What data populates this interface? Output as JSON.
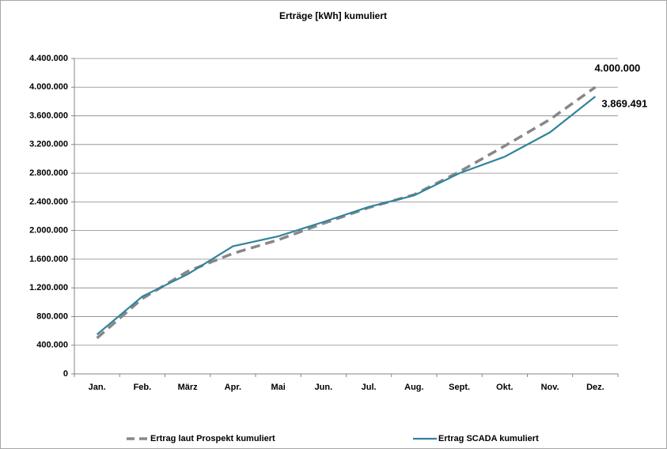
{
  "chart_data": {
    "type": "line",
    "title": "Erträge [kWh] kumuliert",
    "categories": [
      "Jan.",
      "Feb.",
      "März",
      "Apr.",
      "Mai",
      "Jun.",
      "Jul.",
      "Aug.",
      "Sept.",
      "Okt.",
      "Nov.",
      "Dez."
    ],
    "series": [
      {
        "name": "Ertrag laut Prospekt kumuliert",
        "color": "#878787",
        "dashed": true,
        "values": [
          500000,
          1050000,
          1430000,
          1680000,
          1870000,
          2100000,
          2320000,
          2500000,
          2820000,
          3180000,
          3550000,
          4000000
        ],
        "value_labels": [
          null,
          null,
          null,
          null,
          null,
          null,
          null,
          null,
          null,
          null,
          null,
          "4.000.000"
        ]
      },
      {
        "name": "Ertrag SCADA kumuliert",
        "color": "#31849b",
        "dashed": false,
        "values": [
          550000,
          1080000,
          1390000,
          1780000,
          1920000,
          2120000,
          2330000,
          2490000,
          2800000,
          3030000,
          3370000,
          3869491
        ],
        "value_labels": [
          null,
          null,
          null,
          null,
          null,
          null,
          null,
          null,
          null,
          null,
          null,
          "3.869.491"
        ]
      }
    ],
    "ylim": [
      0,
      4400000
    ],
    "yticks": [
      0,
      {
        "value": 400000,
        "label": "400.000"
      },
      {
        "value": 800000,
        "label": "800.000"
      },
      {
        "value": 1200000,
        "label": "1.200.000"
      },
      {
        "value": 1600000,
        "label": "1.600.000"
      },
      {
        "value": 2000000,
        "label": "2.000.000"
      },
      {
        "value": 2400000,
        "label": "2.400.000"
      },
      {
        "value": 2800000,
        "label": "2.800.000"
      },
      {
        "value": 3200000,
        "label": "3.200.000"
      },
      {
        "value": 3600000,
        "label": "3.600.000"
      },
      {
        "value": 4000000,
        "label": "4.000.000"
      },
      {
        "value": 4400000,
        "label": "4.400.000"
      }
    ],
    "grid": true,
    "legend": "bottom"
  }
}
